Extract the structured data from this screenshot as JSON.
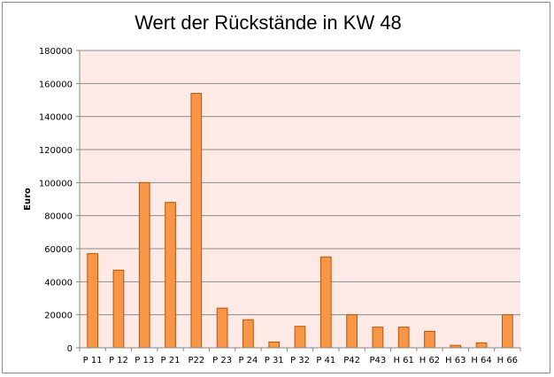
{
  "chart_data": {
    "type": "bar",
    "title": "Wert der Rückstände in KW 48",
    "xlabel": "",
    "ylabel": "Euro",
    "ylim": [
      0,
      180000
    ],
    "yticks": [
      0,
      20000,
      40000,
      60000,
      80000,
      100000,
      120000,
      140000,
      160000,
      180000
    ],
    "grid": true,
    "legend": "none",
    "categories": [
      "P 11",
      "P 12",
      "P 13",
      "P 21",
      "P22",
      "P 23",
      "P 24",
      "P 31",
      "P 32",
      "P 41",
      "P42",
      "P43",
      "H 61",
      "H 62",
      "H 63",
      "H 64",
      "H 66"
    ],
    "values": [
      57000,
      47000,
      100000,
      88000,
      154000,
      24000,
      17000,
      3500,
      13000,
      55000,
      20000,
      12500,
      12500,
      10000,
      1500,
      3000,
      20000
    ],
    "colors": {
      "bar_fill": "#f79646",
      "bar_stroke": "#b65708",
      "plot_background": "#fde9e5",
      "gridline": "#8c8c8c",
      "axis": "#868686"
    }
  }
}
